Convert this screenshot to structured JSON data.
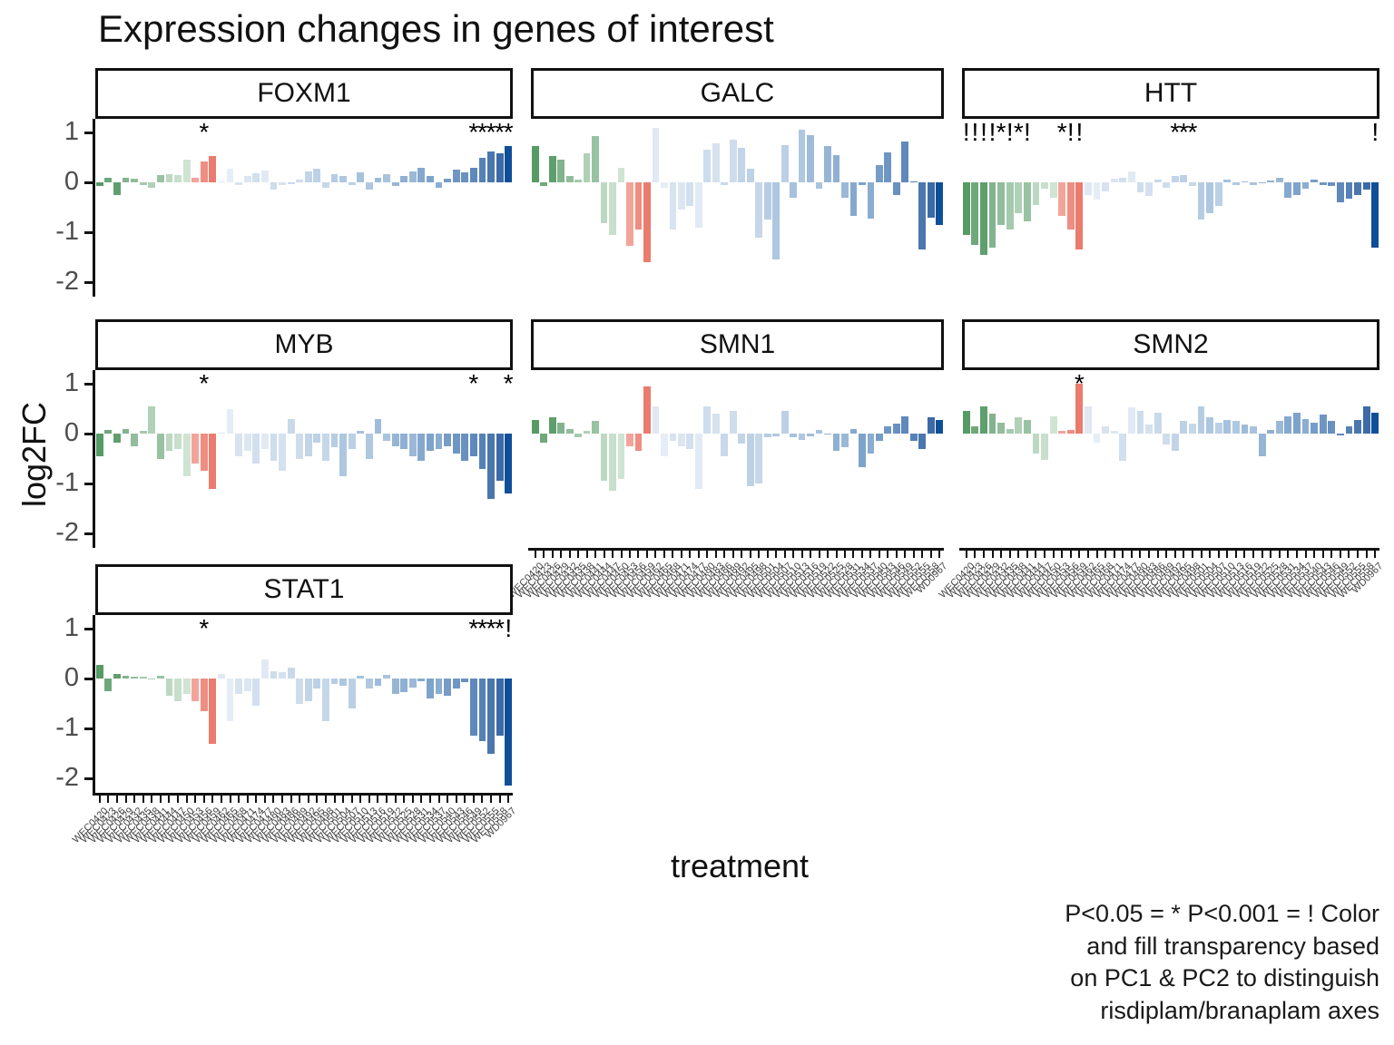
{
  "title": "Expression changes in genes of interest",
  "y_axis": {
    "label": "log2FC",
    "ticks": [
      "1",
      "0",
      "-1",
      "-2"
    ]
  },
  "x_axis": {
    "label": "treatment",
    "treatments": [
      "WEC0420",
      "WEC0423",
      "WEC0426",
      "WEC0429",
      "WEC0432",
      "WEC0435",
      "WEC0438",
      "WEC0441",
      "WEC0444",
      "WEC0447",
      "WEC0450",
      "WEC0453",
      "WEC0456",
      "WEC0459",
      "WEC0462",
      "WEC0465",
      "WEC0468",
      "WEC0471",
      "WEC0474",
      "WEC0477",
      "WEC0480",
      "WEC0483",
      "WEC0486",
      "WEC0489",
      "WEC0492",
      "WEC0495",
      "WEC0498",
      "WEC0501",
      "WEC0504",
      "WEC0507",
      "WEC0510",
      "WEC0513",
      "WEC0516",
      "WEC0519",
      "WEC0522",
      "WEC0525",
      "WEC0528",
      "WEC0531",
      "WEC0534",
      "WEC0537",
      "WEC0540",
      "WEC0543",
      "WEC0546",
      "WEC0549",
      "WEC0552",
      "WEC0555",
      "WEC0558",
      "WD0967"
    ]
  },
  "caption": {
    "lines": [
      "P<0.05 = * P<0.001 = ! Color",
      "and fill transparency based",
      "on PC1 & PC2 to distinguish",
      "risdiplam/branaplam axes"
    ]
  },
  "palette": {
    "axis_color": "#111111",
    "tick_text_color": "#4d4d4d",
    "significance_color": "#000000",
    "bar_colors": [
      "#569a66",
      "#6fa87c",
      "#5f9f6e",
      "#83b38e",
      "#92bc9b",
      "#a5c9ad",
      "#b0d0b7",
      "#98c2a1",
      "#bcd8c2",
      "#c7dfcc",
      "#cfe4d3",
      "#f2a49b",
      "#ee8d82",
      "#ea7b6e",
      "#dfe8f3",
      "#e6edf6",
      "#d8e3f0",
      "#dce6f2",
      "#d2dfee",
      "#e1eaf4",
      "#cdddec",
      "#d5e1ef",
      "#c8d9ea",
      "#cfdcec",
      "#c2d4e8",
      "#bdd1e6",
      "#c6d7e9",
      "#b6cce3",
      "#aec7e0",
      "#bbd0e5",
      "#a6c1dc",
      "#afc8e1",
      "#9ebbd9",
      "#a8c3de",
      "#96b5d5",
      "#8fb0d2",
      "#9bb9d7",
      "#85a9ce",
      "#7ea3cb",
      "#8aadd0",
      "#769cc7",
      "#6f96c3",
      "#6890c0",
      "#5f88bb",
      "#5581b6",
      "#4b77ae",
      "#3d6aa6",
      "#0f4f9a"
    ]
  },
  "chart_data": {
    "type": "bar",
    "facet_variable": "gene",
    "x_variable": "treatment",
    "y_variable": "log2FC",
    "ylim": [
      -2.3,
      1.3
    ],
    "grid": "off",
    "significance_legend": "P<0.05 = *  P<0.001 = !",
    "facets": [
      {
        "gene": "FOXM1",
        "values": [
          -0.07,
          0.1,
          -0.25,
          0.1,
          0.07,
          -0.06,
          -0.1,
          0.15,
          0.17,
          0.15,
          0.45,
          0.1,
          0.42,
          0.52,
          0.0,
          0.28,
          -0.06,
          0.12,
          0.18,
          0.24,
          -0.14,
          -0.06,
          -0.04,
          0.05,
          0.22,
          0.28,
          -0.1,
          0.16,
          0.12,
          -0.06,
          0.2,
          -0.14,
          0.1,
          0.16,
          -0.08,
          0.12,
          0.22,
          0.3,
          0.12,
          -0.1,
          0.08,
          0.25,
          0.2,
          0.3,
          0.5,
          0.62,
          0.58,
          0.72
        ],
        "significance": {
          "13": "*",
          "44": "*",
          "45": "*",
          "46": "*",
          "47": "*",
          "48": "*"
        }
      },
      {
        "gene": "GALC",
        "values": [
          0.72,
          -0.08,
          0.52,
          0.45,
          0.12,
          0.05,
          0.58,
          0.92,
          -0.82,
          -1.05,
          0.3,
          -1.28,
          -0.95,
          -1.6,
          1.1,
          -0.1,
          -0.95,
          -0.55,
          -0.48,
          -0.9,
          0.65,
          0.78,
          -0.05,
          0.85,
          0.7,
          0.28,
          -1.1,
          -0.75,
          -1.55,
          0.75,
          -0.3,
          1.05,
          0.95,
          -0.12,
          0.72,
          0.55,
          -0.3,
          -0.68,
          -0.05,
          -0.72,
          0.35,
          0.6,
          -0.25,
          0.82,
          0.02,
          -1.35,
          -0.7,
          -0.85
        ],
        "significance": {}
      },
      {
        "gene": "HTT",
        "values": [
          -1.05,
          -1.25,
          -1.45,
          -1.3,
          -0.85,
          -0.95,
          -0.62,
          -0.78,
          -0.45,
          -0.12,
          -0.3,
          -0.68,
          -0.95,
          -1.35,
          -0.25,
          -0.35,
          -0.18,
          0.08,
          0.1,
          0.22,
          -0.2,
          -0.28,
          0.05,
          -0.1,
          0.12,
          0.15,
          -0.08,
          -0.75,
          -0.62,
          -0.48,
          0.05,
          -0.05,
          0.02,
          -0.06,
          -0.02,
          0.04,
          0.1,
          -0.3,
          -0.25,
          -0.12,
          0.06,
          -0.05,
          -0.08,
          -0.4,
          -0.32,
          -0.25,
          -0.15,
          -1.3
        ],
        "significance": {
          "1": "!",
          "2": "!",
          "3": "!",
          "4": "!",
          "5": "*",
          "6": "!",
          "7": "*",
          "8": "!",
          "12": "*",
          "13": "!",
          "14": "!",
          "25": "*",
          "26": "*",
          "27": "*",
          "48": "!"
        }
      },
      {
        "gene": "MYB",
        "values": [
          -0.45,
          0.08,
          -0.18,
          0.1,
          -0.25,
          0.05,
          0.55,
          -0.5,
          -0.35,
          -0.3,
          -0.85,
          -0.6,
          -0.75,
          -1.1,
          0.02,
          0.5,
          -0.45,
          -0.35,
          -0.6,
          -0.3,
          -0.55,
          -0.75,
          0.3,
          -0.5,
          -0.45,
          -0.18,
          -0.55,
          -0.28,
          -0.85,
          -0.3,
          0.05,
          -0.5,
          0.3,
          -0.15,
          -0.25,
          -0.3,
          -0.45,
          -0.55,
          -0.35,
          -0.3,
          -0.25,
          -0.4,
          -0.55,
          -0.45,
          -0.7,
          -1.3,
          -0.95,
          -1.2
        ],
        "significance": {
          "13": "*",
          "44": "*",
          "48": "*"
        }
      },
      {
        "gene": "SMN1",
        "values": [
          0.28,
          -0.18,
          0.32,
          0.22,
          0.1,
          -0.08,
          0.05,
          0.25,
          -0.95,
          -1.15,
          -0.9,
          -0.25,
          -0.35,
          0.95,
          0.55,
          -0.45,
          -0.15,
          -0.25,
          -0.3,
          -1.1,
          0.55,
          0.4,
          -0.45,
          0.45,
          -0.2,
          -1.05,
          -1.0,
          -0.08,
          -0.05,
          0.45,
          -0.08,
          -0.12,
          -0.05,
          0.08,
          -0.02,
          -0.35,
          -0.28,
          0.1,
          -0.68,
          -0.4,
          -0.15,
          0.15,
          0.2,
          0.35,
          -0.15,
          -0.3,
          0.32,
          0.28
        ],
        "significance": {}
      },
      {
        "gene": "SMN2",
        "values": [
          0.45,
          0.15,
          0.55,
          0.4,
          0.22,
          0.1,
          0.32,
          0.28,
          -0.4,
          -0.52,
          0.35,
          0.05,
          0.08,
          1.0,
          0.55,
          -0.18,
          0.15,
          0.05,
          -0.55,
          0.52,
          0.45,
          0.18,
          0.42,
          -0.22,
          -0.35,
          0.25,
          0.2,
          0.55,
          0.32,
          0.22,
          0.28,
          0.25,
          0.18,
          0.15,
          -0.45,
          0.08,
          0.25,
          0.35,
          0.42,
          0.3,
          0.22,
          0.38,
          0.25,
          -0.03,
          0.15,
          0.28,
          0.55,
          0.42
        ],
        "significance": {
          "14": "*"
        }
      },
      {
        "gene": "STAT1",
        "values": [
          0.28,
          -0.25,
          0.1,
          0.05,
          0.04,
          0.03,
          -0.02,
          0.05,
          -0.35,
          -0.45,
          -0.3,
          -0.45,
          -0.65,
          -1.3,
          0.1,
          -0.85,
          -0.3,
          -0.25,
          -0.55,
          0.38,
          0.15,
          0.12,
          0.22,
          -0.5,
          -0.45,
          -0.2,
          -0.85,
          -0.1,
          -0.15,
          -0.6,
          0.05,
          -0.2,
          -0.15,
          0.08,
          -0.3,
          -0.28,
          -0.18,
          -0.05,
          -0.4,
          -0.3,
          -0.35,
          -0.2,
          -0.08,
          -1.15,
          -1.25,
          -1.5,
          -1.15,
          -2.15
        ],
        "significance": {
          "13": "*",
          "44": "*",
          "45": "*",
          "46": "*",
          "47": "*",
          "48": "!"
        }
      }
    ]
  }
}
